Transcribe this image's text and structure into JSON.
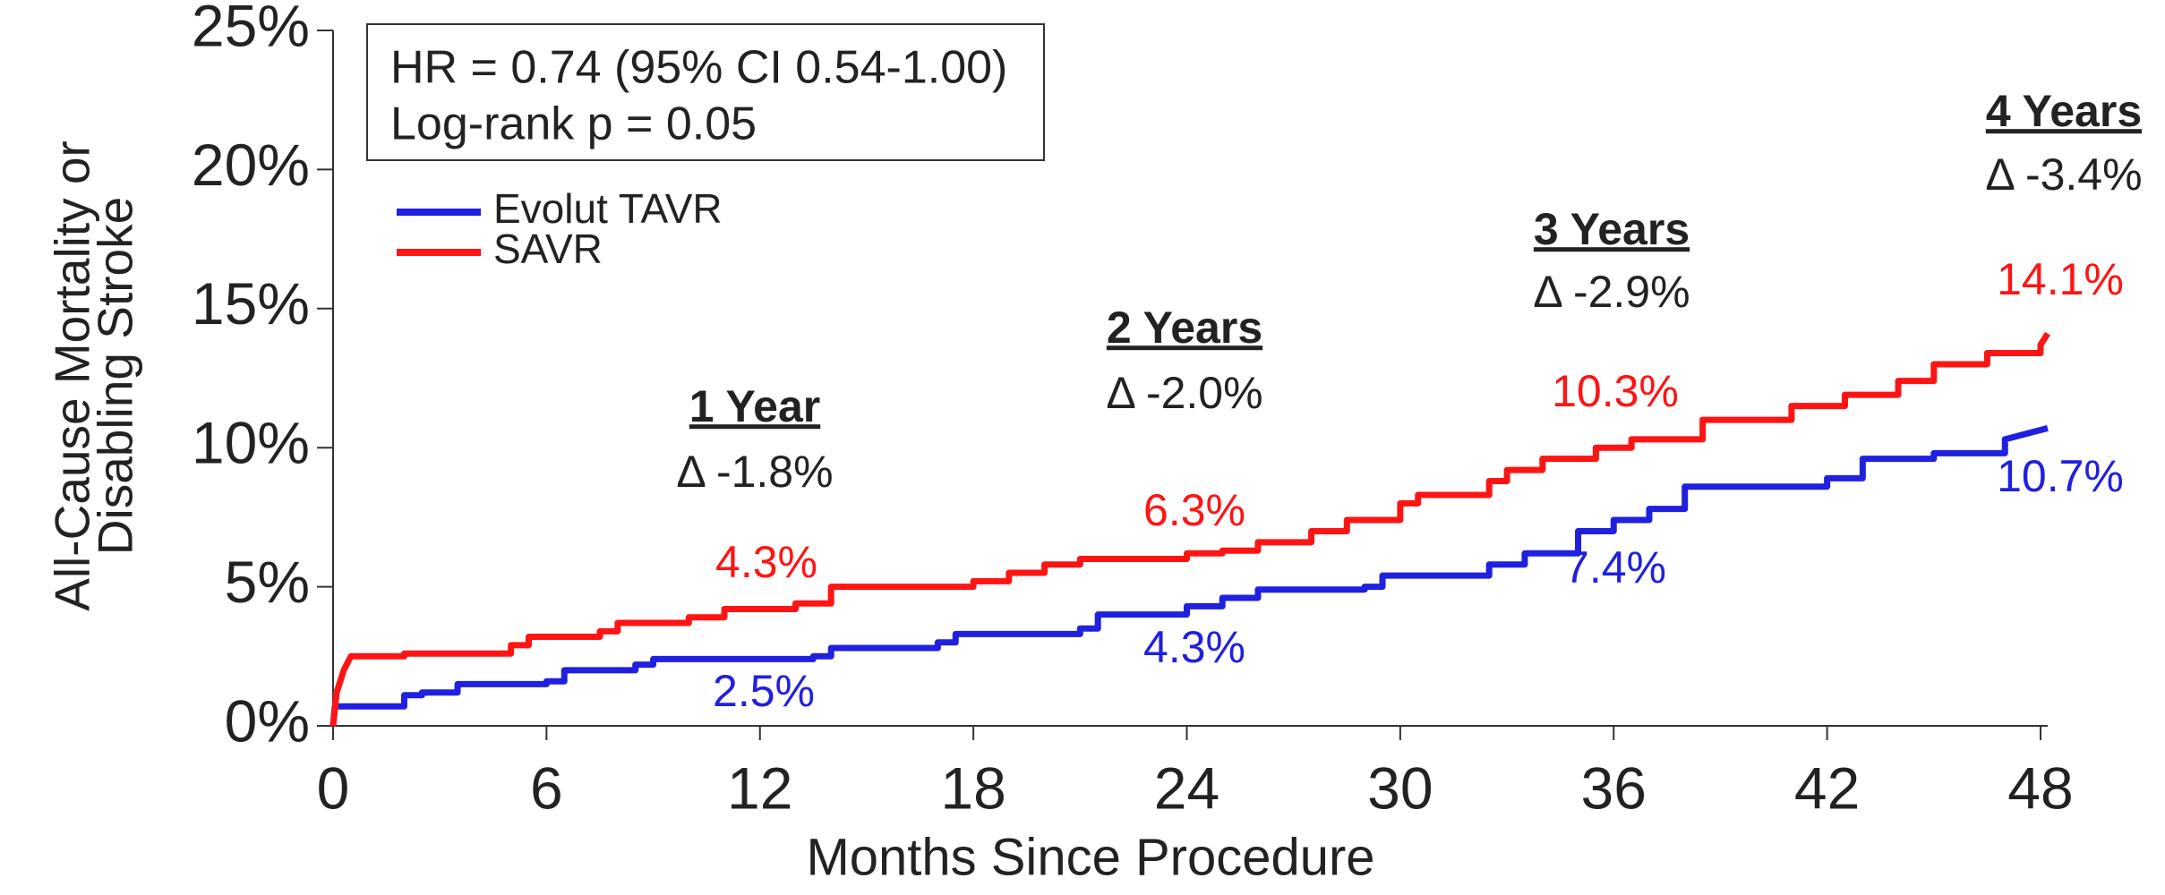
{
  "chart_data": {
    "type": "line",
    "xlabel": "Months Since Procedure",
    "ylabel": [
      "All-Cause Mortality or",
      "Disabling Stroke"
    ],
    "xlim": [
      0,
      48
    ],
    "ylim": [
      0,
      25
    ],
    "xticks": [
      0,
      6,
      12,
      18,
      24,
      30,
      36,
      42,
      48
    ],
    "yticks": [
      {
        "value": 0,
        "label": "0%"
      },
      {
        "value": 5,
        "label": "5%"
      },
      {
        "value": 10,
        "label": "10%"
      },
      {
        "value": 15,
        "label": "15%"
      },
      {
        "value": 20,
        "label": "20%"
      },
      {
        "value": 25,
        "label": "25%"
      }
    ],
    "stats_box": [
      "HR = 0.74 (95% CI 0.54-1.00)",
      "Log-rank p = 0.05"
    ],
    "series": [
      {
        "name": "Evolut TAVR",
        "color": "#2020e0",
        "x": [
          0,
          0.05,
          2,
          2,
          2.5,
          2.5,
          3.5,
          3.5,
          6,
          6,
          6.5,
          6.5,
          8.5,
          8.5,
          9,
          9,
          13.5,
          13.5,
          14,
          14,
          17,
          17,
          17.5,
          17.5,
          21,
          21,
          21.5,
          21.5,
          24,
          24,
          25,
          25,
          26,
          26,
          29,
          29,
          29.5,
          29.5,
          32.5,
          32.5,
          33.5,
          33.5,
          35,
          35,
          36,
          36,
          37,
          37,
          38,
          38,
          42,
          42,
          43,
          43,
          45,
          45,
          47,
          47,
          48.2
        ],
        "values": [
          0,
          0.7,
          0.7,
          1.1,
          1.1,
          1.2,
          1.2,
          1.5,
          1.5,
          1.6,
          1.6,
          2.0,
          2.0,
          2.2,
          2.2,
          2.4,
          2.4,
          2.5,
          2.5,
          2.8,
          2.8,
          3.0,
          3.0,
          3.3,
          3.3,
          3.5,
          3.5,
          4.0,
          4.0,
          4.3,
          4.3,
          4.6,
          4.6,
          4.9,
          4.9,
          5.0,
          5.0,
          5.4,
          5.4,
          5.8,
          5.8,
          6.2,
          6.2,
          7.0,
          7.0,
          7.4,
          7.4,
          7.8,
          7.8,
          8.6,
          8.6,
          8.9,
          8.9,
          9.6,
          9.6,
          9.8,
          9.8,
          10.3,
          10.7
        ]
      },
      {
        "name": "SAVR",
        "color": "#ff1414",
        "x": [
          0,
          0.1,
          0.3,
          0.5,
          2,
          2,
          5,
          5,
          5.5,
          5.5,
          7.5,
          7.5,
          8,
          8,
          10,
          10,
          11,
          11,
          13,
          13,
          14,
          14,
          18,
          18,
          19,
          19,
          20,
          20,
          21,
          21,
          24,
          24,
          25,
          25,
          26,
          26,
          27.5,
          27.5,
          28.5,
          28.5,
          30,
          30,
          30.5,
          30.5,
          32.5,
          32.5,
          33,
          33,
          34,
          34,
          35.5,
          35.5,
          36.5,
          36.5,
          38.5,
          38.5,
          41,
          41,
          42.5,
          42.5,
          44,
          44,
          45,
          45,
          46.5,
          46.5,
          48,
          48,
          48.2
        ],
        "values": [
          0,
          1.2,
          2.0,
          2.5,
          2.5,
          2.6,
          2.6,
          2.9,
          2.9,
          3.2,
          3.2,
          3.4,
          3.4,
          3.7,
          3.7,
          3.9,
          3.9,
          4.2,
          4.2,
          4.4,
          4.4,
          5.0,
          5.0,
          5.2,
          5.2,
          5.5,
          5.5,
          5.8,
          5.8,
          6.0,
          6.0,
          6.2,
          6.2,
          6.3,
          6.3,
          6.6,
          6.6,
          7.0,
          7.0,
          7.4,
          7.4,
          8.0,
          8.0,
          8.3,
          8.3,
          8.8,
          8.8,
          9.2,
          9.2,
          9.6,
          9.6,
          10.0,
          10.0,
          10.3,
          10.3,
          11.0,
          11.0,
          11.5,
          11.5,
          11.9,
          11.9,
          12.4,
          12.4,
          13.0,
          13.0,
          13.4,
          13.4,
          13.7,
          14.1
        ]
      }
    ],
    "annotations": [
      {
        "heading": "1 Year",
        "delta": "Δ -1.8%",
        "savr": "4.3%",
        "tavr": "2.5%"
      },
      {
        "heading": "2 Years",
        "delta": "Δ -2.0%",
        "savr": "6.3%",
        "tavr": "4.3%"
      },
      {
        "heading": "3 Years",
        "delta": "Δ -2.9%",
        "savr": "10.3%",
        "tavr": "7.4%"
      },
      {
        "heading": "4 Years",
        "delta": "Δ -3.4%",
        "savr": "14.1%",
        "tavr": "10.7%"
      }
    ]
  }
}
